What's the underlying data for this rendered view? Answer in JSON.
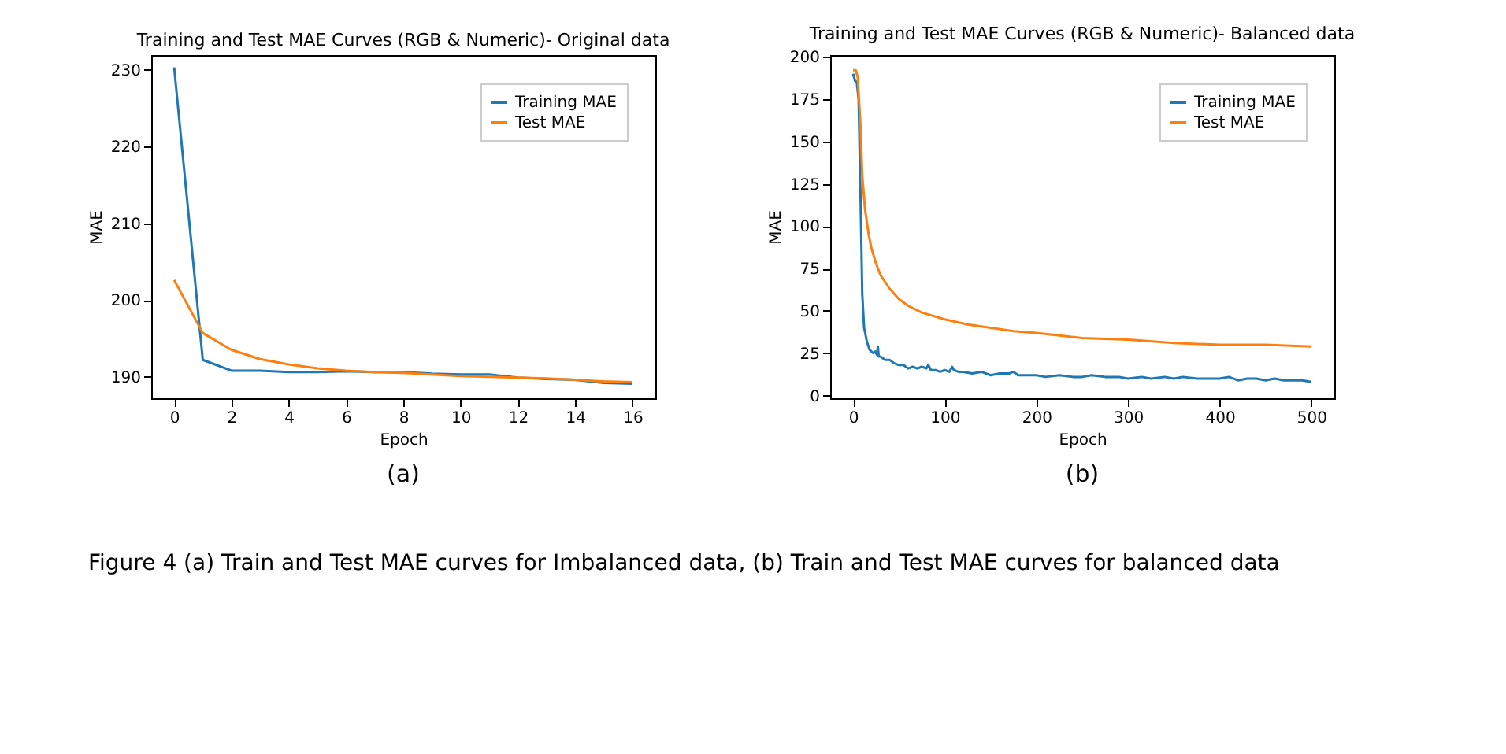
{
  "chart_data": [
    {
      "type": "line",
      "title": "Training and Test MAE Curves (RGB & Numeric)- Original data",
      "xlabel": "Epoch",
      "ylabel": "MAE",
      "x": [
        0,
        1,
        2,
        3,
        4,
        5,
        6,
        7,
        8,
        9,
        10,
        11,
        12,
        13,
        14,
        15,
        16
      ],
      "series": [
        {
          "name": "Training MAE",
          "color": "#1f77b4",
          "values": [
            230.3,
            192.2,
            190.8,
            190.8,
            190.6,
            190.6,
            190.7,
            190.6,
            190.6,
            190.4,
            190.3,
            190.3,
            189.9,
            189.7,
            189.6,
            189.2,
            189.1
          ]
        },
        {
          "name": "Test MAE",
          "color": "#ff7f0e",
          "values": [
            202.6,
            195.7,
            193.5,
            192.3,
            191.6,
            191.1,
            190.8,
            190.6,
            190.5,
            190.3,
            190.1,
            190.0,
            189.9,
            189.8,
            189.6,
            189.4,
            189.3
          ]
        }
      ],
      "xlim": [
        -0.8,
        16.8
      ],
      "xticks": [
        0,
        2,
        4,
        6,
        8,
        10,
        12,
        14,
        16
      ],
      "ylim": [
        187.2,
        231.9
      ],
      "yticks": [
        190,
        200,
        210,
        220,
        230
      ],
      "grid": false,
      "legend": "top right",
      "line_style": "solid",
      "marker": "none",
      "annotations": [
        "(a)",
        "Figure 4  (a) Train and Test MAE curves for Imbalanced data, (b) Train and Test MAE curves for balanced data"
      ]
    },
    {
      "type": "line",
      "title": "Training and Test MAE Curves (RGB & Numeric)- Balanced data",
      "xlabel": "Epoch",
      "ylabel": "MAE",
      "series": [
        {
          "name": "Training MAE",
          "color": "#1f77b4",
          "x": [
            0,
            2,
            4,
            6,
            8,
            10,
            12,
            15,
            18,
            20,
            22,
            24,
            26,
            27,
            28,
            30,
            35,
            40,
            45,
            50,
            55,
            60,
            65,
            70,
            75,
            80,
            82,
            85,
            90,
            95,
            100,
            105,
            108,
            110,
            115,
            120,
            130,
            140,
            150,
            160,
            170,
            175,
            180,
            190,
            200,
            210,
            225,
            240,
            250,
            260,
            275,
            290,
            300,
            315,
            325,
            340,
            350,
            360,
            375,
            390,
            400,
            410,
            420,
            430,
            440,
            450,
            460,
            470,
            480,
            490,
            500
          ],
          "values": [
            190,
            186,
            185,
            175,
            120,
            60,
            40,
            32,
            27,
            26,
            25,
            26,
            24,
            29,
            23,
            23,
            21,
            21,
            19,
            18,
            18,
            16,
            17,
            16,
            17,
            16,
            18,
            15,
            15,
            14,
            15,
            14,
            17,
            15,
            14,
            14,
            13,
            14,
            12,
            13,
            13,
            14,
            12,
            12,
            12,
            11,
            12,
            11,
            11,
            12,
            11,
            11,
            10,
            11,
            10,
            11,
            10,
            11,
            10,
            10,
            10,
            11,
            9,
            10,
            10,
            9,
            10,
            9,
            9,
            9,
            8
          ]
        },
        {
          "name": "Test MAE",
          "color": "#ff7f0e",
          "x": [
            0,
            3,
            5,
            8,
            10,
            13,
            17,
            20,
            25,
            30,
            40,
            50,
            60,
            75,
            100,
            125,
            150,
            175,
            200,
            250,
            300,
            350,
            400,
            450,
            500
          ],
          "values": [
            192,
            192,
            188,
            160,
            130,
            110,
            95,
            87,
            78,
            71,
            63,
            57,
            53,
            49,
            45,
            42,
            40,
            38,
            37,
            34,
            33,
            31,
            30,
            30,
            29
          ]
        }
      ],
      "xlim": [
        -25,
        525
      ],
      "xticks": [
        0,
        100,
        200,
        300,
        400,
        500
      ],
      "ylim": [
        -1.6,
        201
      ],
      "yticks": [
        0,
        25,
        50,
        75,
        100,
        125,
        150,
        175,
        200
      ],
      "grid": false,
      "legend": "top right",
      "line_style": "solid",
      "marker": "none",
      "annotations": [
        "(b)"
      ]
    }
  ]
}
